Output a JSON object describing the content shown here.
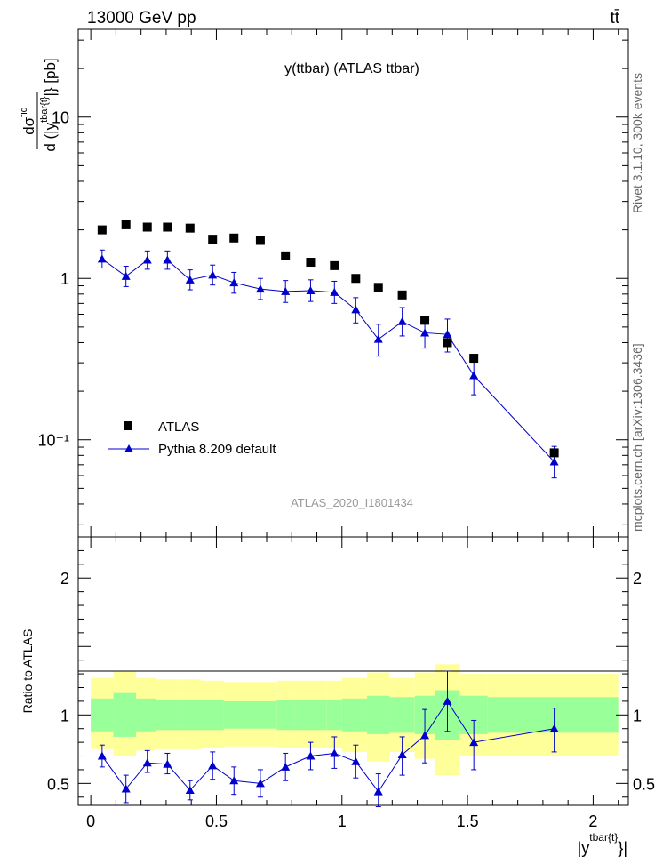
{
  "header": {
    "left": "13000 GeV pp",
    "right": "tt̄"
  },
  "side_labels": {
    "rivet": "Rivet 3.1.10,  300k events",
    "source": "mcplots.cern.ch [arXiv:1306.3436]"
  },
  "colors": {
    "data": "#000000",
    "mc": "#0000cc",
    "band_inner": "#99ff99",
    "band_outer": "#ffff99"
  },
  "chart_data": [
    {
      "type": "scatter",
      "panel": "main",
      "title": "y(ttbar) (ATLAS ttbar)",
      "watermark": "ATLAS_2020_I1801434",
      "ylabel": {
        "num": "dσ",
        "num_sup": "fid",
        "den": "d (|y",
        "den_sup": "tbar{t}",
        "den_tail": "|} [pb]"
      },
      "yscale": "log",
      "xlim": [
        -0.05,
        2.14
      ],
      "ylim": [
        0.025,
        35
      ],
      "ytick_labels": [
        "10⁻¹",
        "1",
        "10"
      ],
      "legend": [
        "ATLAS",
        "Pythia 8.209 default"
      ],
      "series": [
        {
          "name": "ATLAS",
          "x": [
            0.045,
            0.14,
            0.225,
            0.305,
            0.395,
            0.485,
            0.57,
            0.675,
            0.775,
            0.875,
            0.97,
            1.055,
            1.145,
            1.24,
            1.33,
            1.42,
            1.525,
            1.845
          ],
          "y": [
            2.0,
            2.15,
            2.08,
            2.08,
            2.05,
            1.75,
            1.78,
            1.72,
            1.38,
            1.26,
            1.2,
            1.0,
            0.88,
            0.79,
            0.55,
            0.4,
            0.32,
            0.083
          ]
        },
        {
          "name": "Pythia 8.209 default",
          "x": [
            0.045,
            0.14,
            0.225,
            0.305,
            0.395,
            0.485,
            0.57,
            0.675,
            0.775,
            0.875,
            0.97,
            1.055,
            1.145,
            1.24,
            1.33,
            1.42,
            1.525,
            1.845
          ],
          "y": [
            1.32,
            1.03,
            1.3,
            1.3,
            0.98,
            1.05,
            0.94,
            0.86,
            0.83,
            0.84,
            0.82,
            0.64,
            0.42,
            0.54,
            0.46,
            0.45,
            0.25,
            0.073
          ],
          "yerr_low": [
            0.16,
            0.14,
            0.16,
            0.16,
            0.13,
            0.14,
            0.13,
            0.12,
            0.12,
            0.12,
            0.12,
            0.11,
            0.09,
            0.1,
            0.09,
            0.1,
            0.06,
            0.015
          ],
          "yerr_high": [
            0.18,
            0.16,
            0.18,
            0.18,
            0.15,
            0.16,
            0.15,
            0.14,
            0.14,
            0.14,
            0.14,
            0.12,
            0.1,
            0.12,
            0.1,
            0.11,
            0.07,
            0.018
          ]
        }
      ]
    },
    {
      "type": "scatter",
      "panel": "ratio",
      "ylabel": "Ratio to ATLAS",
      "xlabel": {
        "base": "|y",
        "sup": "tbar{t}",
        "tail": "}|"
      },
      "yscale": "linear",
      "xlim": [
        -0.05,
        2.14
      ],
      "ylim": [
        0.34,
        2.3
      ],
      "xticks": [
        0,
        0.5,
        1,
        1.5,
        2
      ],
      "xtick_labels": [
        "0",
        "0.5",
        "1",
        "1.5",
        "2"
      ],
      "yticks": [
        0.5,
        1,
        2
      ],
      "ytick_labels": [
        "0.5",
        "1",
        "2"
      ],
      "bin_edges": [
        0,
        0.09,
        0.18,
        0.26,
        0.35,
        0.44,
        0.53,
        0.61,
        0.74,
        0.81,
        0.94,
        1.0,
        1.1,
        1.19,
        1.29,
        1.37,
        1.47,
        1.58,
        2.1
      ],
      "band_inner": {
        "lo": [
          0.88,
          0.84,
          0.88,
          0.89,
          0.89,
          0.89,
          0.9,
          0.9,
          0.89,
          0.89,
          0.89,
          0.88,
          0.86,
          0.87,
          0.86,
          0.82,
          0.86,
          0.87
        ],
        "hi": [
          1.12,
          1.16,
          1.12,
          1.11,
          1.11,
          1.11,
          1.1,
          1.1,
          1.11,
          1.11,
          1.11,
          1.12,
          1.14,
          1.13,
          1.14,
          1.18,
          1.14,
          1.13
        ]
      },
      "band_outer": {
        "lo": [
          0.75,
          0.7,
          0.74,
          0.75,
          0.75,
          0.76,
          0.77,
          0.77,
          0.76,
          0.76,
          0.76,
          0.73,
          0.66,
          0.73,
          0.68,
          0.56,
          0.7,
          0.7
        ],
        "hi": [
          1.27,
          1.32,
          1.27,
          1.26,
          1.26,
          1.25,
          1.24,
          1.24,
          1.25,
          1.25,
          1.25,
          1.27,
          1.31,
          1.27,
          1.31,
          1.37,
          1.3,
          1.3
        ]
      },
      "series": [
        {
          "name": "Pythia 8.209 default / ATLAS",
          "x": [
            0.045,
            0.14,
            0.225,
            0.305,
            0.395,
            0.485,
            0.57,
            0.675,
            0.775,
            0.875,
            0.97,
            1.055,
            1.145,
            1.24,
            1.33,
            1.42,
            1.525,
            1.845
          ],
          "y": [
            0.7,
            0.46,
            0.65,
            0.64,
            0.45,
            0.63,
            0.52,
            0.5,
            0.62,
            0.7,
            0.72,
            0.66,
            0.44,
            0.71,
            0.85,
            1.1,
            0.8,
            0.9
          ],
          "yerr_low": [
            0.08,
            0.1,
            0.07,
            0.07,
            0.07,
            0.1,
            0.1,
            0.1,
            0.1,
            0.1,
            0.11,
            0.12,
            0.11,
            0.15,
            0.2,
            0.22,
            0.2,
            0.17
          ],
          "yerr_high": [
            0.08,
            0.1,
            0.09,
            0.08,
            0.07,
            0.1,
            0.1,
            0.1,
            0.1,
            0.1,
            0.12,
            0.12,
            0.13,
            0.13,
            0.19,
            0.22,
            0.16,
            0.15
          ]
        }
      ]
    }
  ]
}
